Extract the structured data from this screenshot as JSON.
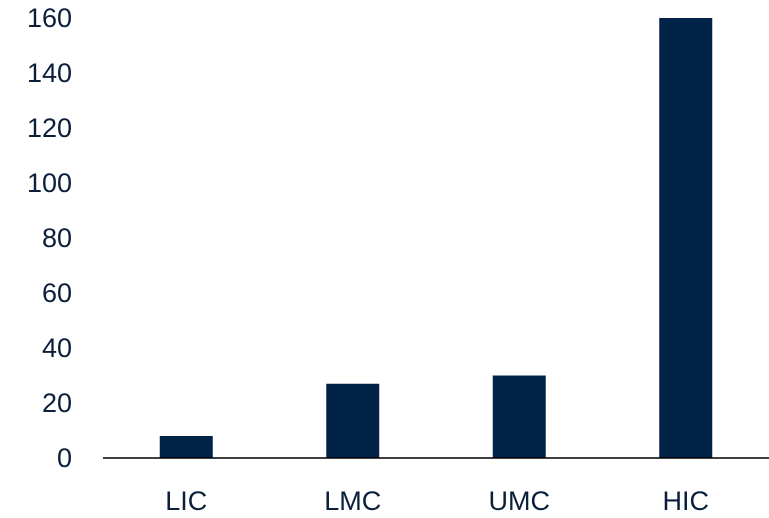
{
  "chart_data": {
    "type": "bar",
    "categories": [
      "LIC",
      "LMC",
      "UMC",
      "HIC"
    ],
    "values": [
      8,
      27,
      30,
      162
    ],
    "title": "",
    "xlabel": "",
    "ylabel": "",
    "ylim": [
      0,
      160
    ],
    "yticks": [
      "0",
      "20",
      "40",
      "60",
      "80",
      "100",
      "120",
      "140",
      "160"
    ],
    "grid": false,
    "legend": "none"
  },
  "colors": {
    "bar": "#002347",
    "axis": "#000000",
    "text": "#0b1f3a"
  }
}
